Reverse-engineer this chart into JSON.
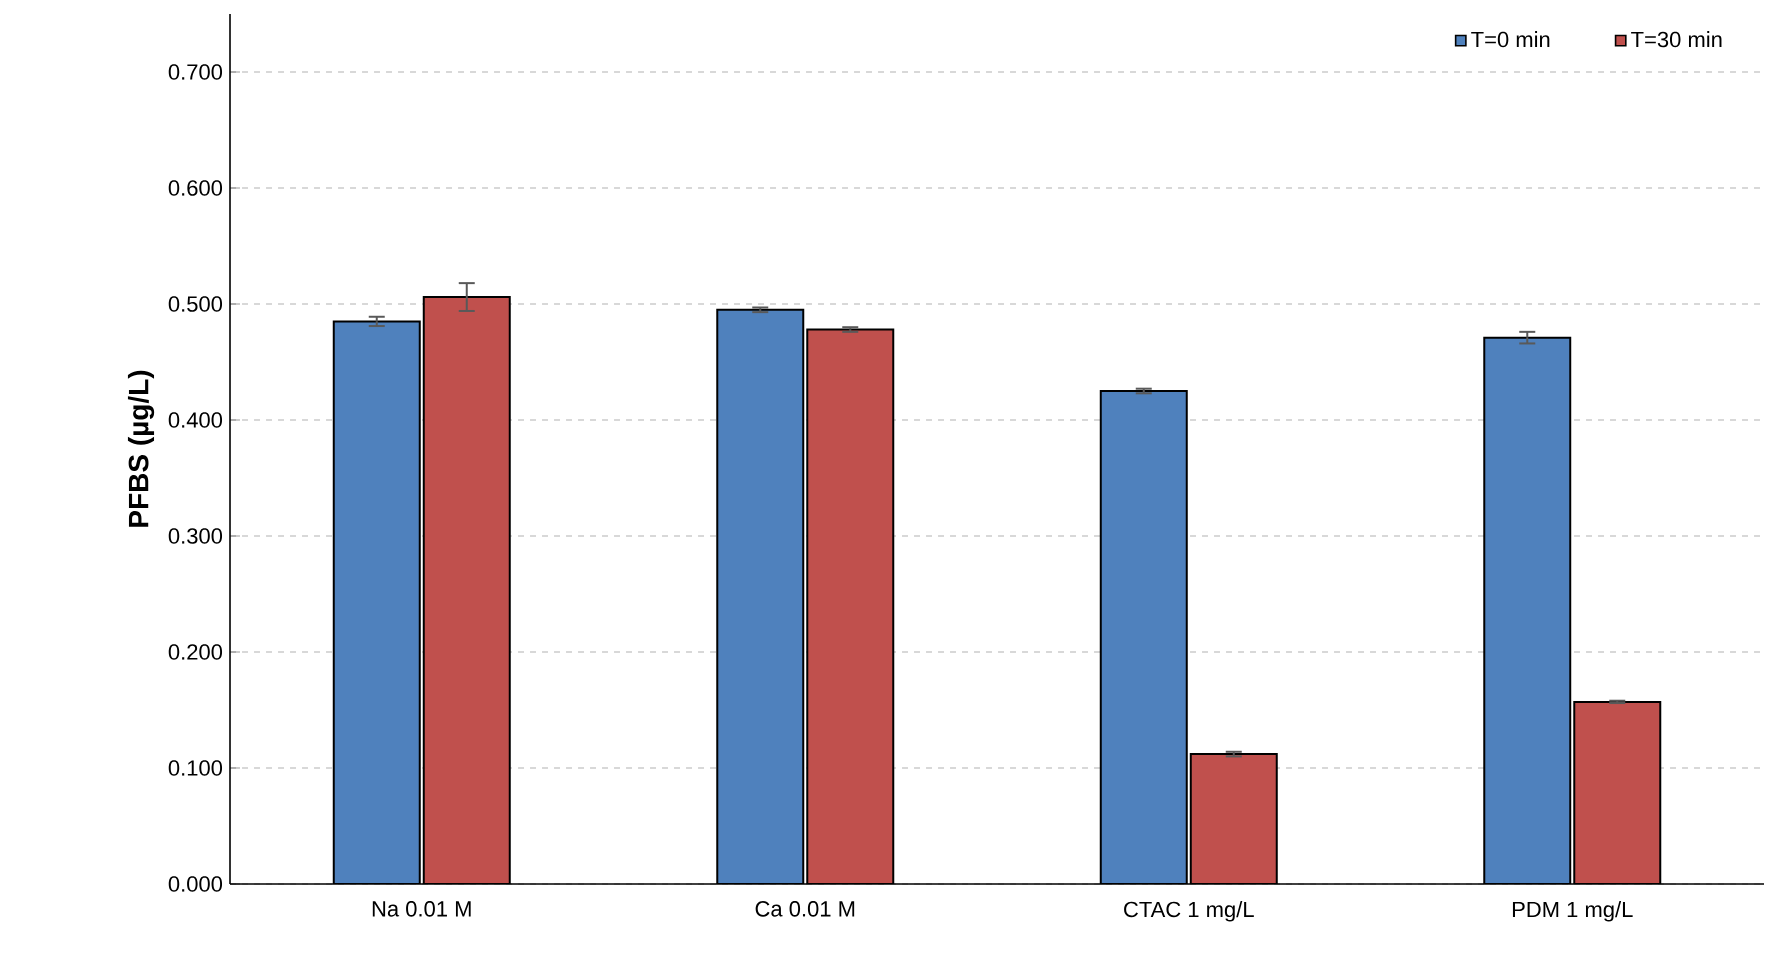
{
  "chart_data": {
    "type": "bar",
    "ylabel": "PFBS (µg/L)",
    "categories": [
      "Na 0.01 M",
      "Ca 0.01 M",
      "CTAC 1 mg/L",
      "PDM 1 mg/L"
    ],
    "series": [
      {
        "name": "T=0 min",
        "color": "#4f81bd",
        "values": [
          0.485,
          0.495,
          0.425,
          0.471
        ],
        "errors": [
          0.004,
          0.002,
          0.002,
          0.005
        ]
      },
      {
        "name": "T=30 min",
        "color": "#c0504d",
        "values": [
          0.506,
          0.478,
          0.112,
          0.157
        ],
        "errors": [
          0.012,
          0.002,
          0.002,
          0.001
        ]
      }
    ],
    "ylim": [
      0,
      0.75
    ],
    "yticks": [
      {
        "value": 0,
        "label": "0.000"
      },
      {
        "value": 0.1,
        "label": "0.100"
      },
      {
        "value": 0.2,
        "label": "0.200"
      },
      {
        "value": 0.3,
        "label": "0.300"
      },
      {
        "value": 0.4,
        "label": "0.400"
      },
      {
        "value": 0.5,
        "label": "0.500"
      },
      {
        "value": 0.6,
        "label": "0.600"
      },
      {
        "value": 0.7,
        "label": "0.700"
      }
    ],
    "grid": "y",
    "legend": "top right"
  }
}
